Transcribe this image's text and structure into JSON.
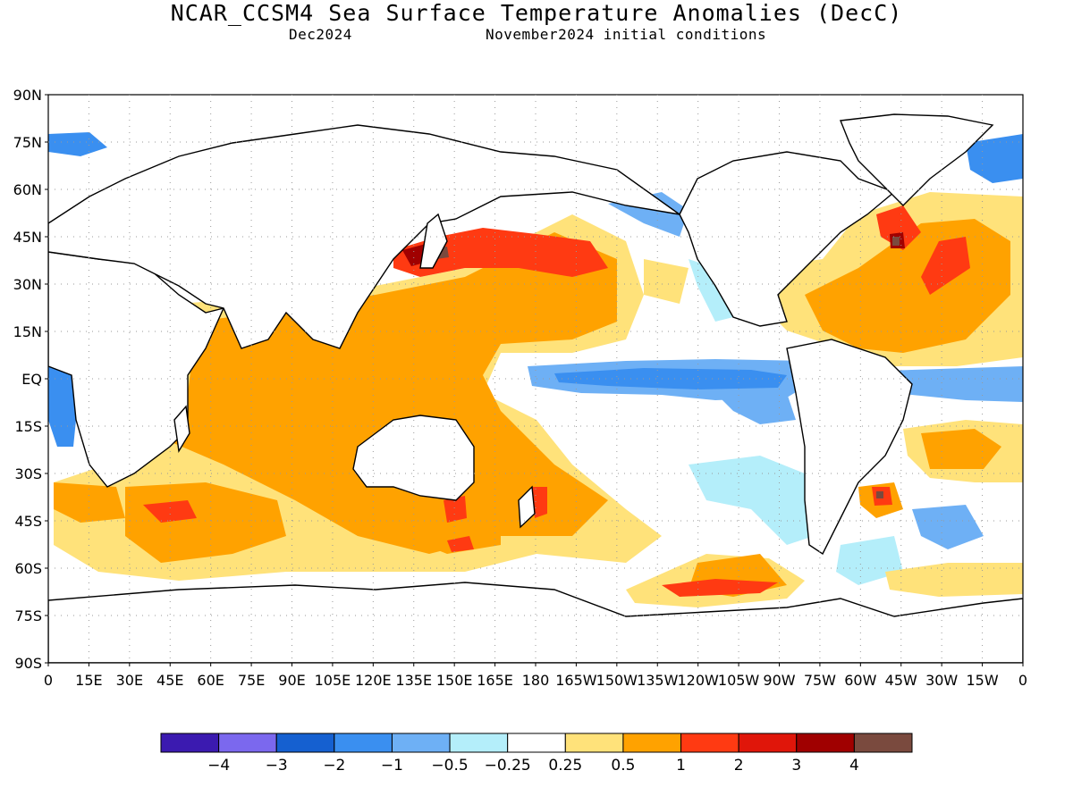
{
  "header": {
    "title": "NCAR_CCSM4 Sea Surface Temperature Anomalies (DecC)",
    "target_month": "Dec2024",
    "initial_conditions": "November2024 initial conditions"
  },
  "axes": {
    "lat_ticks": [
      "90N",
      "75N",
      "60N",
      "45N",
      "30N",
      "15N",
      "EQ",
      "15S",
      "30S",
      "45S",
      "60S",
      "75S",
      "90S"
    ],
    "lon_ticks": [
      "0",
      "15E",
      "30E",
      "45E",
      "60E",
      "75E",
      "90E",
      "105E",
      "120E",
      "135E",
      "150E",
      "165E",
      "180",
      "165W",
      "150W",
      "135W",
      "120W",
      "105W",
      "90W",
      "75W",
      "60W",
      "45W",
      "30W",
      "15W",
      "0"
    ]
  },
  "colorbar": {
    "colors": [
      "#3b1ab0",
      "#7b68ee",
      "#1560d0",
      "#3a8ff0",
      "#6eb0f5",
      "#b4eefa",
      "#ffffff",
      "#ffe27a",
      "#ffa200",
      "#ff3a12",
      "#e0160a",
      "#a00000",
      "#7a4a3e"
    ],
    "labels": [
      "−4",
      "−3",
      "−2",
      "−1",
      "−0.5",
      "−0.25",
      "0.25",
      "0.5",
      "1",
      "2",
      "3",
      "4"
    ]
  },
  "legend_meaning": {
    "warm_strong": "#ff3a12",
    "warm": "#ffa200",
    "warm_weak": "#ffe27a",
    "cool_weak": "#b4eefa",
    "cool": "#6eb0f5",
    "cool_strong": "#3a8ff0"
  }
}
